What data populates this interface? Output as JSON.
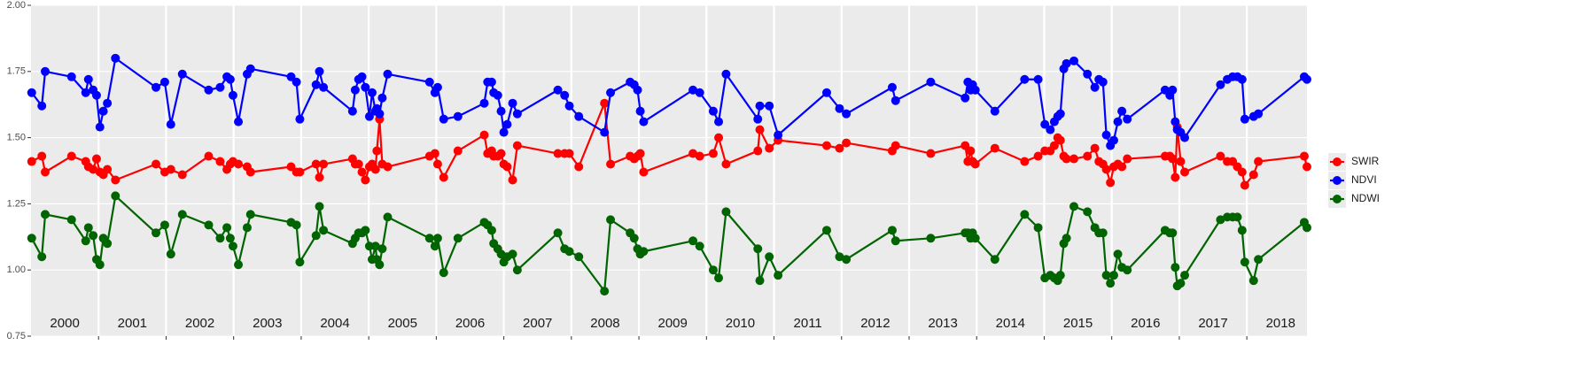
{
  "chart_data": {
    "type": "line",
    "x": [
      2000.01,
      2000.16,
      2000.21,
      2000.6,
      2000.81,
      2000.85,
      2000.92,
      2000.97,
      2001.02,
      2001.07,
      2001.13,
      2001.25,
      2001.85,
      2001.98,
      2002.07,
      2002.24,
      2002.63,
      2002.8,
      2002.9,
      2002.95,
      2002.99,
      2003.07,
      2003.2,
      2003.25,
      2003.85,
      2003.93,
      2003.98,
      2004.22,
      2004.27,
      2004.33,
      2004.76,
      2004.8,
      2004.85,
      2004.9,
      2004.95,
      2005.01,
      2005.05,
      2005.1,
      2005.12,
      2005.16,
      2005.2,
      2005.28,
      2005.9,
      2005.98,
      2006.02,
      2006.11,
      2006.32,
      2006.71,
      2006.76,
      2006.82,
      2006.85,
      2006.91,
      2006.96,
      2007.0,
      2007.05,
      2007.13,
      2007.2,
      2007.8,
      2007.9,
      2007.97,
      2008.11,
      2008.49,
      2008.58,
      2008.87,
      2008.93,
      2008.98,
      2009.02,
      2009.07,
      2009.8,
      2009.9,
      2010.1,
      2010.18,
      2010.29,
      2010.76,
      2010.79,
      2010.93,
      2011.06,
      2011.78,
      2011.97,
      2012.07,
      2012.75,
      2012.8,
      2013.32,
      2013.83,
      2013.87,
      2013.91,
      2013.94,
      2013.98,
      2014.27,
      2014.71,
      2014.91,
      2015.01,
      2015.09,
      2015.15,
      2015.2,
      2015.24,
      2015.29,
      2015.33,
      2015.44,
      2015.64,
      2015.75,
      2015.81,
      2015.87,
      2015.92,
      2015.98,
      2016.03,
      2016.09,
      2016.15,
      2016.23,
      2016.79,
      2016.86,
      2016.9,
      2016.94,
      2016.97,
      2017.02,
      2017.08,
      2017.61,
      2017.71,
      2017.79,
      2017.86,
      2017.93,
      2017.97,
      2018.1,
      2018.17,
      2018.85,
      2018.89
    ],
    "series": [
      {
        "name": "SWIR",
        "color": "#ff0000",
        "values": [
          1.41,
          1.43,
          1.37,
          1.43,
          1.41,
          1.39,
          1.38,
          1.42,
          1.37,
          1.36,
          1.38,
          1.34,
          1.4,
          1.37,
          1.38,
          1.36,
          1.43,
          1.41,
          1.38,
          1.4,
          1.41,
          1.4,
          1.39,
          1.37,
          1.39,
          1.37,
          1.37,
          1.4,
          1.35,
          1.4,
          1.42,
          1.4,
          1.4,
          1.37,
          1.34,
          1.39,
          1.4,
          1.38,
          1.45,
          1.57,
          1.4,
          1.39,
          1.43,
          1.44,
          1.4,
          1.35,
          1.45,
          1.51,
          1.44,
          1.45,
          1.43,
          1.43,
          1.44,
          1.4,
          1.39,
          1.34,
          1.47,
          1.44,
          1.44,
          1.44,
          1.39,
          1.63,
          1.4,
          1.43,
          1.42,
          1.43,
          1.44,
          1.37,
          1.44,
          1.43,
          1.44,
          1.5,
          1.4,
          1.45,
          1.53,
          1.46,
          1.49,
          1.47,
          1.46,
          1.48,
          1.45,
          1.47,
          1.44,
          1.47,
          1.41,
          1.45,
          1.41,
          1.4,
          1.46,
          1.41,
          1.43,
          1.45,
          1.45,
          1.47,
          1.5,
          1.49,
          1.43,
          1.42,
          1.42,
          1.43,
          1.46,
          1.41,
          1.4,
          1.38,
          1.33,
          1.39,
          1.4,
          1.39,
          1.42,
          1.43,
          1.43,
          1.42,
          1.35,
          1.54,
          1.41,
          1.37,
          1.43,
          1.41,
          1.41,
          1.39,
          1.37,
          1.32,
          1.36,
          1.41,
          1.43,
          1.39
        ]
      },
      {
        "name": "NDVI",
        "color": "#0000ff",
        "values": [
          1.67,
          1.62,
          1.75,
          1.73,
          1.67,
          1.72,
          1.68,
          1.66,
          1.54,
          1.6,
          1.63,
          1.8,
          1.69,
          1.71,
          1.55,
          1.74,
          1.68,
          1.69,
          1.73,
          1.72,
          1.66,
          1.56,
          1.74,
          1.76,
          1.73,
          1.71,
          1.57,
          1.7,
          1.75,
          1.69,
          1.6,
          1.68,
          1.72,
          1.73,
          1.69,
          1.58,
          1.67,
          1.6,
          1.61,
          1.59,
          1.65,
          1.74,
          1.71,
          1.67,
          1.69,
          1.57,
          1.58,
          1.63,
          1.71,
          1.71,
          1.67,
          1.66,
          1.6,
          1.52,
          1.55,
          1.63,
          1.59,
          1.68,
          1.66,
          1.62,
          1.58,
          1.52,
          1.67,
          1.71,
          1.7,
          1.68,
          1.6,
          1.56,
          1.68,
          1.67,
          1.6,
          1.56,
          1.74,
          1.57,
          1.62,
          1.62,
          1.51,
          1.67,
          1.61,
          1.59,
          1.69,
          1.64,
          1.71,
          1.65,
          1.71,
          1.68,
          1.7,
          1.68,
          1.6,
          1.72,
          1.72,
          1.55,
          1.53,
          1.56,
          1.58,
          1.59,
          1.76,
          1.78,
          1.79,
          1.74,
          1.69,
          1.72,
          1.71,
          1.51,
          1.47,
          1.49,
          1.56,
          1.6,
          1.57,
          1.68,
          1.66,
          1.68,
          1.56,
          1.53,
          1.52,
          1.5,
          1.7,
          1.72,
          1.73,
          1.73,
          1.72,
          1.57,
          1.58,
          1.59,
          1.73,
          1.72
        ]
      },
      {
        "name": "NDWI",
        "color": "#006400",
        "values": [
          1.12,
          1.05,
          1.21,
          1.19,
          1.11,
          1.16,
          1.13,
          1.04,
          1.02,
          1.12,
          1.1,
          1.28,
          1.14,
          1.17,
          1.06,
          1.21,
          1.17,
          1.12,
          1.16,
          1.12,
          1.09,
          1.02,
          1.16,
          1.21,
          1.18,
          1.17,
          1.03,
          1.13,
          1.24,
          1.15,
          1.1,
          1.12,
          1.14,
          1.14,
          1.15,
          1.09,
          1.04,
          1.09,
          1.04,
          1.02,
          1.08,
          1.2,
          1.12,
          1.09,
          1.12,
          0.99,
          1.12,
          1.18,
          1.17,
          1.15,
          1.1,
          1.08,
          1.06,
          1.03,
          1.05,
          1.06,
          1.0,
          1.14,
          1.08,
          1.07,
          1.05,
          0.92,
          1.19,
          1.14,
          1.12,
          1.08,
          1.06,
          1.07,
          1.11,
          1.09,
          1.0,
          0.97,
          1.22,
          1.08,
          0.96,
          1.05,
          0.98,
          1.15,
          1.05,
          1.04,
          1.15,
          1.11,
          1.12,
          1.14,
          1.14,
          1.12,
          1.14,
          1.12,
          1.04,
          1.21,
          1.16,
          0.97,
          0.98,
          0.97,
          0.96,
          0.98,
          1.1,
          1.12,
          1.24,
          1.22,
          1.16,
          1.14,
          1.14,
          0.98,
          0.95,
          0.98,
          1.06,
          1.01,
          1.0,
          1.15,
          1.14,
          1.14,
          1.01,
          0.94,
          0.95,
          0.98,
          1.19,
          1.2,
          1.2,
          1.2,
          1.15,
          1.03,
          0.96,
          1.04,
          1.18,
          1.16
        ]
      }
    ],
    "xlim": [
      2000.0,
      2018.89
    ],
    "xgrid": [
      2001,
      2002,
      2003,
      2004,
      2005,
      2006,
      2007,
      2008,
      2009,
      2010,
      2011,
      2012,
      2013,
      2014,
      2015,
      2016,
      2017,
      2018
    ],
    "xticks": [
      {
        "value": 2000.5,
        "label": "2000"
      },
      {
        "value": 2001.5,
        "label": "2001"
      },
      {
        "value": 2002.5,
        "label": "2002"
      },
      {
        "value": 2003.5,
        "label": "2003"
      },
      {
        "value": 2004.5,
        "label": "2004"
      },
      {
        "value": 2005.5,
        "label": "2005"
      },
      {
        "value": 2006.5,
        "label": "2006"
      },
      {
        "value": 2007.5,
        "label": "2007"
      },
      {
        "value": 2008.5,
        "label": "2008"
      },
      {
        "value": 2009.5,
        "label": "2009"
      },
      {
        "value": 2010.5,
        "label": "2010"
      },
      {
        "value": 2011.5,
        "label": "2011"
      },
      {
        "value": 2012.5,
        "label": "2012"
      },
      {
        "value": 2013.5,
        "label": "2013"
      },
      {
        "value": 2014.5,
        "label": "2014"
      },
      {
        "value": 2015.5,
        "label": "2015"
      },
      {
        "value": 2016.5,
        "label": "2016"
      },
      {
        "value": 2017.5,
        "label": "2017"
      },
      {
        "value": 2018.5,
        "label": "2018"
      }
    ],
    "ylim": [
      0.75,
      2.0
    ],
    "yticks": [
      {
        "value": 0.75,
        "label": "0.75"
      },
      {
        "value": 1.0,
        "label": "1.00"
      },
      {
        "value": 1.25,
        "label": "1.25"
      },
      {
        "value": 1.5,
        "label": "1.50"
      },
      {
        "value": 1.75,
        "label": "1.75"
      },
      {
        "value": 2.0,
        "label": "2.00"
      }
    ],
    "grid": true,
    "legend": "right"
  }
}
